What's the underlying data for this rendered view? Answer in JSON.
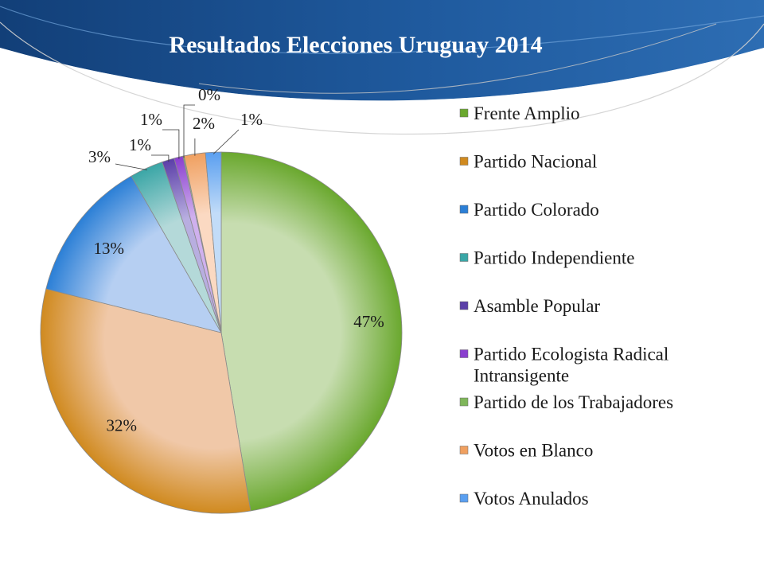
{
  "slide": {
    "title": "Resultados Elecciones Uruguay 2014",
    "colors": {
      "header_dark": "#1c4f8f",
      "header_light": "#3f84c5",
      "title": "#ffffff",
      "text": "#1a1a1a"
    }
  },
  "chart_data": {
    "type": "pie",
    "title": "Resultados Elecciones Uruguay 2014",
    "slices": [
      {
        "label": "Frente Amplio",
        "value": 47.4,
        "display": "47%",
        "color": "#6aa82e",
        "light": "#c7ddb0"
      },
      {
        "label": "Partido Nacional",
        "value": 31.5,
        "display": "32%",
        "color": "#d08a1f",
        "light": "#f0c8a8"
      },
      {
        "label": "Partido Colorado",
        "value": 12.8,
        "display": "13%",
        "color": "#2b7fd6",
        "light": "#b6cff2"
      },
      {
        "label": "Partido Independiente",
        "value": 3.0,
        "display": "3%",
        "color": "#3aa6a6",
        "light": "#b4d9d9"
      },
      {
        "label": "Asamble Popular",
        "value": 1.1,
        "display": "1%",
        "color": "#5b3fa8",
        "light": "#b8aee0"
      },
      {
        "label": "Partido Ecologista Radical Intransigente",
        "value": 0.8,
        "display": "1%",
        "color": "#8a3fcf",
        "light": "#cfb0ee"
      },
      {
        "label": "Partido de los Trabajadores",
        "value": 0.1,
        "display": "0%",
        "color": "#7fb65a",
        "light": "#cfe3c0"
      },
      {
        "label": "Votos en Blanco",
        "value": 1.9,
        "display": "2%",
        "color": "#f0a060",
        "light": "#fbd9c2"
      },
      {
        "label": "Votos Anulados",
        "value": 1.4,
        "display": "1%",
        "color": "#5a9ff0",
        "light": "#c2dcf8"
      }
    ],
    "legend_position": "right"
  }
}
